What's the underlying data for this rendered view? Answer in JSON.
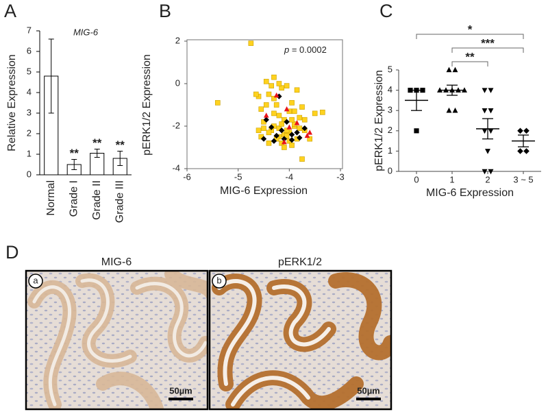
{
  "chart_data": [
    {
      "type": "bar",
      "panel": "A",
      "title": "MIG-6",
      "y_label": "Relative Expression",
      "categories": [
        "Normal",
        "Grade I",
        "Grade II",
        "Grade III"
      ],
      "values": [
        4.8,
        0.5,
        1.05,
        0.8
      ],
      "errors": [
        1.8,
        0.25,
        0.2,
        0.35
      ],
      "significance": [
        null,
        "**",
        "**",
        "**"
      ],
      "color": "#ffffff",
      "ylim": [
        0,
        7
      ],
      "yticks": [
        0,
        1,
        2,
        3,
        4,
        5,
        6,
        7
      ]
    },
    {
      "type": "scatter",
      "panel": "B",
      "x_label": "MIG-6 Expression",
      "y_label": "pERK1/2 Expression",
      "annotation": {
        "symbol": "p",
        "text": " = 0.0002"
      },
      "xlim": [
        -6,
        -3
      ],
      "xticks": [
        -6,
        -5,
        -4,
        -3
      ],
      "ylim": [
        -4,
        2
      ],
      "yticks": [
        -4,
        -2,
        0,
        2
      ],
      "series": [
        {
          "color": "#ffd21f",
          "marker": "square",
          "x": [
            -4.75,
            -5.4,
            -4.6,
            -4.55,
            -4.5,
            -4.45,
            -4.4,
            -4.35,
            -4.3,
            -4.25,
            -4.2,
            -4.15,
            -4.1,
            -4.05,
            -4.0,
            -3.95,
            -3.9,
            -3.85,
            -3.8,
            -3.75,
            -3.7,
            -3.6,
            -3.5,
            -3.35,
            -4.65,
            -4.5,
            -4.4,
            -4.3,
            -4.2,
            -4.1,
            -4.0,
            -3.9,
            -3.8,
            -4.45,
            -4.35,
            -4.25,
            -4.15,
            -4.05,
            -3.95,
            -3.85,
            -4.55,
            -4.3,
            -4.2,
            -4.1,
            -4.0,
            -3.9,
            -4.4,
            -4.2,
            -3.75,
            -3.7,
            -4.6,
            -4.3,
            -4.15,
            -4.05,
            -3.95
          ],
          "y": [
            1.9,
            -0.9,
            -0.6,
            -1.2,
            -1.8,
            0.1,
            -0.5,
            -2.2,
            0.3,
            -1.0,
            -1.5,
            -0.2,
            -2.4,
            -0.1,
            -1.3,
            -0.9,
            -2.0,
            -0.3,
            -1.6,
            -1.1,
            -2.2,
            -2.6,
            -1.4,
            -1.35,
            -0.5,
            -2.1,
            -2.3,
            -2.0,
            -2.5,
            -1.7,
            -2.3,
            -1.9,
            -2.1,
            -1.0,
            -0.1,
            -2.6,
            -2.8,
            -2.2,
            -1.7,
            -2.6,
            -2.5,
            -1.4,
            0.0,
            -3.0,
            -2.7,
            -1.3,
            -2.8,
            -2.1,
            -3.55,
            -1.7,
            -2.2,
            -0.7,
            -1.9,
            -2.45,
            -2.9
          ]
        },
        {
          "color": "#000000",
          "marker": "diamond",
          "x": [
            -4.3,
            -4.45,
            -4.1,
            -4.2,
            -4.05,
            -3.95,
            -3.85,
            -3.7,
            -4.25,
            -4.5,
            -3.8,
            -4.15,
            -3.95,
            -4.35
          ],
          "y": [
            -2.7,
            -1.7,
            -2.6,
            -0.6,
            -1.8,
            -2.4,
            -2.3,
            -2.1,
            -2.45,
            -2.6,
            -2.55,
            -2.2,
            -2.65,
            -2.05
          ]
        },
        {
          "color": "#e8141b",
          "marker": "triangle",
          "x": [
            -4.25,
            -4.45,
            -4.05,
            -3.85,
            -3.65,
            -3.6,
            -4.1,
            -4.0
          ],
          "y": [
            -0.55,
            -1.5,
            -1.2,
            -1.85,
            -2.45,
            -2.3,
            -2.75,
            -2.05
          ]
        }
      ]
    },
    {
      "type": "dot",
      "panel": "C",
      "x_label": "MIG-6 Expression",
      "y_label": "pERK1/2 Expression",
      "categories": [
        "0",
        "1",
        "2",
        "3 ~ 5"
      ],
      "groups": [
        {
          "marker": "square",
          "values": [
            4,
            4,
            4,
            2
          ]
        },
        {
          "marker": "triangle",
          "values": [
            5,
            5,
            4,
            4,
            4,
            4,
            4,
            3,
            3
          ]
        },
        {
          "marker": "triangle-down",
          "values": [
            4,
            4,
            3,
            3,
            2,
            2,
            1,
            0,
            0
          ]
        },
        {
          "marker": "diamond",
          "values": [
            2,
            2,
            1,
            1
          ]
        }
      ],
      "means": [
        3.5,
        4.0,
        2.1,
        1.5
      ],
      "sems": [
        0.5,
        0.25,
        0.5,
        0.29
      ],
      "comparisons": [
        {
          "from": "0",
          "to": "3 ~ 5",
          "label": "*"
        },
        {
          "from": "1",
          "to": "3 ~ 5",
          "label": "***"
        },
        {
          "from": "1",
          "to": "2",
          "label": "**"
        }
      ],
      "ylim": [
        0,
        5
      ],
      "yticks": [
        0,
        1,
        2,
        3,
        4,
        5
      ]
    }
  ],
  "panel_d": {
    "label": "D",
    "images": [
      {
        "title": "MIG-6",
        "tag": "a",
        "scale_bar": "50µm"
      },
      {
        "title": "pERK1/2",
        "tag": "b",
        "scale_bar": "50µm"
      }
    ]
  }
}
